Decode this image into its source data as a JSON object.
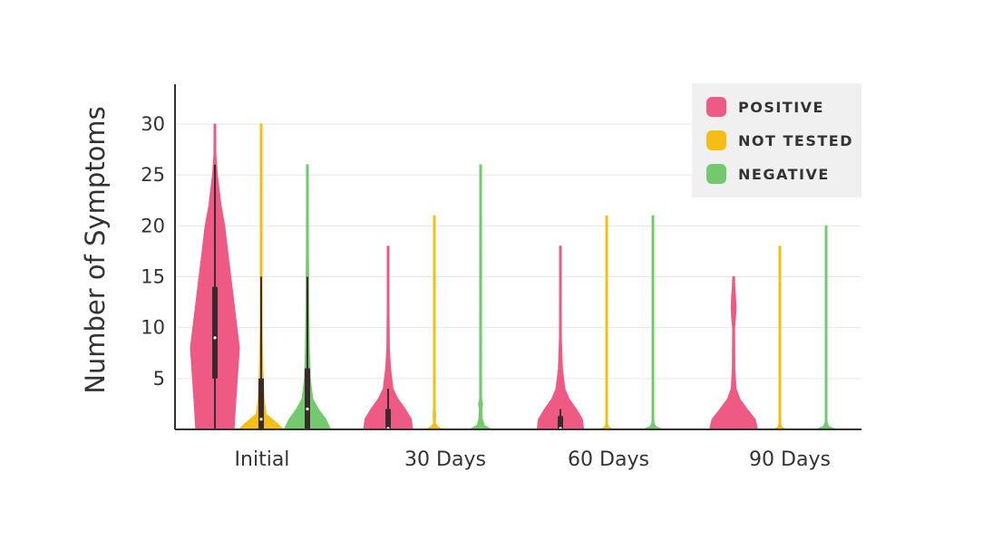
{
  "chart_data": {
    "type": "violin",
    "title": "",
    "xlabel": "",
    "ylabel": "Number of Symptoms",
    "ylim": [
      0,
      34
    ],
    "yticks": [
      5,
      10,
      15,
      20,
      25,
      30
    ],
    "grid": true,
    "legend_position": "top-right",
    "categories": [
      "Initial",
      "30 Days",
      "60 Days",
      "90 Days"
    ],
    "series": [
      {
        "name": "POSITIVE",
        "color": "#EE5A83",
        "violins": [
          {
            "density": [
              [
                0,
                0.78
              ],
              [
                3,
                0.86
              ],
              [
                8,
                1.0
              ],
              [
                12,
                0.8
              ],
              [
                17,
                0.55
              ],
              [
                20,
                0.4
              ],
              [
                22,
                0.25
              ],
              [
                25,
                0.1
              ],
              [
                27,
                0.04
              ],
              [
                30,
                0.02
              ]
            ],
            "box": {
              "min": 0,
              "q1": 5,
              "median": 9,
              "q3": 14,
              "max": 26
            }
          },
          {
            "density": [
              [
                0,
                1.0
              ],
              [
                1,
                0.95
              ],
              [
                2,
                0.7
              ],
              [
                3,
                0.4
              ],
              [
                4,
                0.2
              ],
              [
                6,
                0.1
              ],
              [
                8,
                0.05
              ],
              [
                12,
                0.03
              ],
              [
                18,
                0.02
              ]
            ],
            "box": {
              "min": 0,
              "q1": 0,
              "median": 0,
              "q3": 2,
              "max": 4
            }
          },
          {
            "density": [
              [
                0,
                0.95
              ],
              [
                1,
                0.9
              ],
              [
                2,
                0.65
              ],
              [
                3,
                0.35
              ],
              [
                4,
                0.18
              ],
              [
                6,
                0.08
              ],
              [
                9,
                0.04
              ],
              [
                13,
                0.03
              ],
              [
                18,
                0.02
              ]
            ],
            "box": {
              "min": 0,
              "q1": 0,
              "median": 0,
              "q3": 1.3,
              "max": 2
            }
          },
          {
            "density": [
              [
                0,
                0.98
              ],
              [
                1,
                0.88
              ],
              [
                2,
                0.55
              ],
              [
                3,
                0.25
              ],
              [
                4,
                0.1
              ],
              [
                6,
                0.05
              ],
              [
                10,
                0.04
              ],
              [
                11,
                0.08
              ],
              [
                12,
                0.1
              ],
              [
                13,
                0.08
              ],
              [
                14,
                0.05
              ],
              [
                15,
                0.02
              ]
            ],
            "box": null
          }
        ]
      },
      {
        "name": "NOT TESTED",
        "color": "#F5BE16",
        "violins": [
          {
            "density": [
              [
                0,
                0.9
              ],
              [
                0.5,
                0.7
              ],
              [
                1,
                0.45
              ],
              [
                1.5,
                0.2
              ],
              [
                3,
                0.12
              ],
              [
                6,
                0.07
              ],
              [
                10,
                0.04
              ],
              [
                15,
                0.03
              ],
              [
                30,
                0.02
              ]
            ],
            "box": {
              "min": 0,
              "q1": 0,
              "median": 1,
              "q3": 5,
              "max": 15
            }
          },
          {
            "density": [
              [
                0,
                0.32
              ],
              [
                0.3,
                0.12
              ],
              [
                0.6,
                0.04
              ],
              [
                1.5,
                0.05
              ],
              [
                2,
                0.03
              ],
              [
                21,
                0.02
              ]
            ],
            "box": null
          },
          {
            "density": [
              [
                0,
                0.24
              ],
              [
                0.3,
                0.06
              ],
              [
                0.6,
                0.03
              ],
              [
                21,
                0.02
              ]
            ],
            "box": null
          },
          {
            "density": [
              [
                0,
                0.24
              ],
              [
                0.3,
                0.06
              ],
              [
                0.6,
                0.03
              ],
              [
                18,
                0.02
              ]
            ],
            "box": null
          }
        ]
      },
      {
        "name": "NEGATIVE",
        "color": "#72C96E",
        "violins": [
          {
            "density": [
              [
                0,
                0.95
              ],
              [
                1,
                0.75
              ],
              [
                2,
                0.45
              ],
              [
                3,
                0.22
              ],
              [
                5,
                0.12
              ],
              [
                8,
                0.08
              ],
              [
                12,
                0.06
              ],
              [
                18,
                0.04
              ],
              [
                22,
                0.03
              ],
              [
                26,
                0.02
              ]
            ],
            "box": {
              "min": 0,
              "q1": 0,
              "median": 2,
              "q3": 6,
              "max": 15
            }
          },
          {
            "density": [
              [
                0,
                0.45
              ],
              [
                0.4,
                0.15
              ],
              [
                1,
                0.07
              ],
              [
                2,
                0.05
              ],
              [
                2.5,
                0.08
              ],
              [
                3,
                0.04
              ],
              [
                26,
                0.02
              ]
            ],
            "box": null
          },
          {
            "density": [
              [
                0,
                0.4
              ],
              [
                0.3,
                0.1
              ],
              [
                0.7,
                0.03
              ],
              [
                21,
                0.02
              ]
            ],
            "box": null
          },
          {
            "density": [
              [
                0,
                0.4
              ],
              [
                0.3,
                0.1
              ],
              [
                0.7,
                0.03
              ],
              [
                20,
                0.02
              ]
            ],
            "box": null
          }
        ]
      }
    ]
  }
}
